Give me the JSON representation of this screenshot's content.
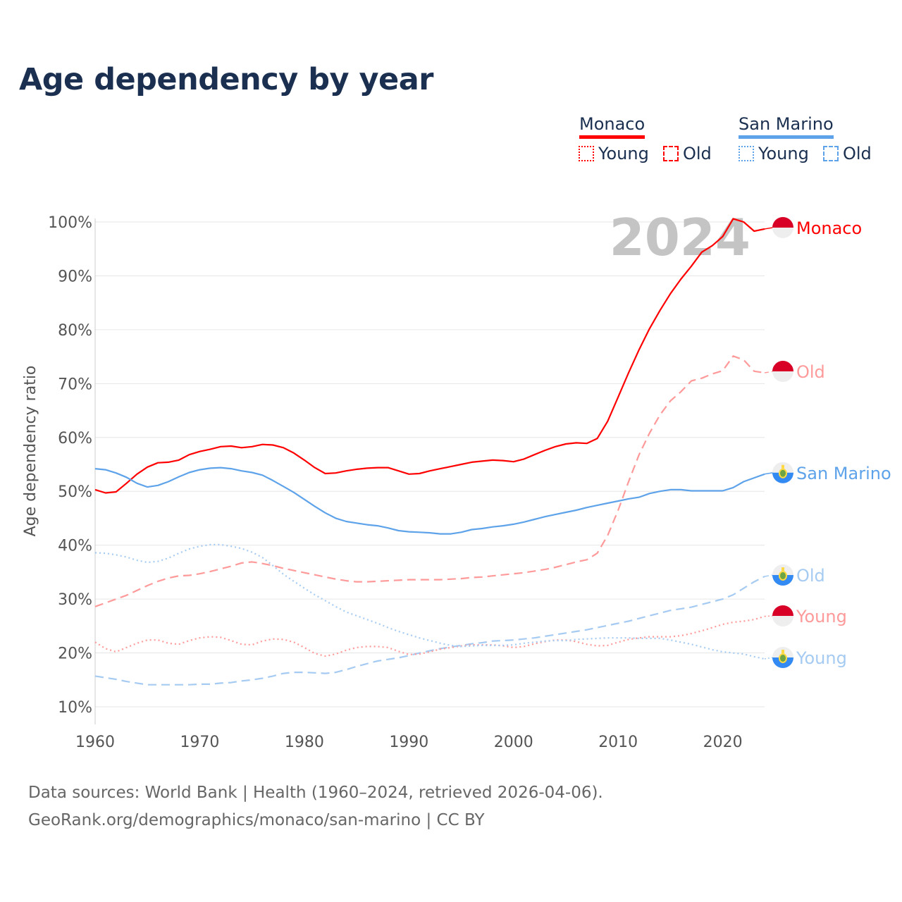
{
  "title": "Age dependency by year",
  "legend": {
    "countries": [
      {
        "name": "Monaco",
        "color": "#ff0000",
        "young_label": "Young",
        "old_label": "Old"
      },
      {
        "name": "San Marino",
        "color": "#5ea3ea",
        "young_label": "Young",
        "old_label": "Old"
      }
    ]
  },
  "year_watermark": "2024",
  "footer": {
    "line1": "Data sources: World Bank | Health (1960–2024, retrieved 2026-04-06).",
    "line2": "GeoRank.org/demographics/monaco/san-marino | CC BY"
  },
  "chart_data": {
    "type": "line",
    "title": "Age dependency by year",
    "xlabel": "",
    "ylabel": "Age dependency ratio",
    "xlim": [
      1960,
      2024
    ],
    "ylim": [
      10,
      100
    ],
    "x_ticks": [
      1960,
      1970,
      1980,
      1990,
      2000,
      2010,
      2020
    ],
    "y_ticks": [
      "10%",
      "20%",
      "30%",
      "40%",
      "50%",
      "60%",
      "70%",
      "80%",
      "90%",
      "100%"
    ],
    "y_tick_values": [
      10,
      20,
      30,
      40,
      50,
      60,
      70,
      80,
      90,
      100
    ],
    "grid": true,
    "x_start": 1960,
    "series": [
      {
        "name": "Monaco",
        "label": "Monaco",
        "country": "Monaco",
        "style": "solid",
        "color": "#ff0000",
        "values": [
          50.3,
          49.7,
          49.9,
          51.5,
          53.2,
          54.5,
          55.3,
          55.4,
          55.8,
          56.8,
          57.4,
          57.8,
          58.3,
          58.4,
          58.1,
          58.3,
          58.7,
          58.6,
          58.1,
          57.1,
          55.8,
          54.4,
          53.3,
          53.4,
          53.8,
          54.1,
          54.3,
          54.4,
          54.4,
          53.8,
          53.2,
          53.3,
          53.8,
          54.2,
          54.6,
          55.0,
          55.4,
          55.6,
          55.8,
          55.7,
          55.5,
          56.0,
          56.8,
          57.6,
          58.3,
          58.8,
          59.0,
          58.9,
          59.8,
          63.0,
          67.5,
          72.0,
          76.3,
          80.2,
          83.6,
          86.7,
          89.4,
          91.8,
          94.4,
          95.6,
          97.3,
          100.6,
          100.0,
          98.3,
          98.7
        ]
      },
      {
        "name": "Monaco Old",
        "label": "Old",
        "country": "Monaco",
        "style": "dashed",
        "color": "#ff9a9a",
        "values": [
          28.6,
          29.3,
          30.0,
          30.7,
          31.6,
          32.5,
          33.3,
          33.9,
          34.3,
          34.4,
          34.7,
          35.1,
          35.6,
          36.1,
          36.7,
          36.9,
          36.6,
          36.2,
          35.7,
          35.3,
          34.9,
          34.5,
          34.1,
          33.7,
          33.4,
          33.2,
          33.2,
          33.3,
          33.4,
          33.5,
          33.6,
          33.6,
          33.6,
          33.6,
          33.7,
          33.8,
          34.0,
          34.1,
          34.3,
          34.5,
          34.7,
          34.9,
          35.2,
          35.5,
          35.9,
          36.4,
          36.9,
          37.3,
          38.5,
          41.8,
          46.5,
          51.8,
          56.8,
          60.8,
          64.2,
          66.8,
          68.5,
          70.5,
          71.0,
          71.8,
          72.4,
          75.1,
          74.4,
          72.3,
          72.0
        ]
      },
      {
        "name": "San Marino",
        "label": "San Marino",
        "country": "San Marino",
        "style": "solid",
        "color": "#5ea3ea",
        "values": [
          54.2,
          54.0,
          53.4,
          52.6,
          51.5,
          50.8,
          51.1,
          51.8,
          52.7,
          53.5,
          54.0,
          54.3,
          54.4,
          54.2,
          53.8,
          53.5,
          53.0,
          52.0,
          50.9,
          49.8,
          48.5,
          47.2,
          46.0,
          45.0,
          44.4,
          44.1,
          43.8,
          43.6,
          43.2,
          42.7,
          42.5,
          42.4,
          42.3,
          42.1,
          42.1,
          42.4,
          42.9,
          43.1,
          43.4,
          43.6,
          43.9,
          44.3,
          44.8,
          45.3,
          45.7,
          46.1,
          46.5,
          47.0,
          47.4,
          47.8,
          48.2,
          48.6,
          48.9,
          49.6,
          50.0,
          50.3,
          50.3,
          50.1,
          50.1,
          50.1,
          50.1,
          50.7,
          51.8,
          52.5,
          53.2
        ]
      },
      {
        "name": "San Marino Old",
        "label": "Old",
        "country": "San Marino",
        "style": "dashed",
        "color": "#a6cbf2",
        "values": [
          15.7,
          15.4,
          15.1,
          14.7,
          14.4,
          14.1,
          14.1,
          14.1,
          14.1,
          14.1,
          14.2,
          14.2,
          14.4,
          14.5,
          14.8,
          15.0,
          15.3,
          15.7,
          16.2,
          16.4,
          16.4,
          16.3,
          16.2,
          16.4,
          16.9,
          17.5,
          18.0,
          18.5,
          18.8,
          19.1,
          19.5,
          20.0,
          20.4,
          20.8,
          21.1,
          21.4,
          21.7,
          21.9,
          22.2,
          22.3,
          22.4,
          22.6,
          22.8,
          23.1,
          23.4,
          23.7,
          24.0,
          24.3,
          24.7,
          25.1,
          25.5,
          25.9,
          26.4,
          26.9,
          27.4,
          27.9,
          28.2,
          28.5,
          29.0,
          29.5,
          30.0,
          30.8,
          32.0,
          33.2,
          34.2
        ]
      },
      {
        "name": "Monaco Young",
        "label": "Young",
        "country": "Monaco",
        "style": "dotted",
        "color": "#ff9a9a",
        "values": [
          22.0,
          20.8,
          20.2,
          21.0,
          21.8,
          22.4,
          22.4,
          21.8,
          21.6,
          22.3,
          22.8,
          23.0,
          22.9,
          22.3,
          21.6,
          21.5,
          22.2,
          22.6,
          22.5,
          22.0,
          21.0,
          19.9,
          19.4,
          19.8,
          20.5,
          21.0,
          21.2,
          21.2,
          21.0,
          20.3,
          19.7,
          19.8,
          20.2,
          20.7,
          21.0,
          21.3,
          21.5,
          21.5,
          21.5,
          21.3,
          21.0,
          21.2,
          21.7,
          22.1,
          22.4,
          22.4,
          22.1,
          21.6,
          21.3,
          21.4,
          22.0,
          22.5,
          22.8,
          23.0,
          23.0,
          23.0,
          23.2,
          23.6,
          24.1,
          24.7,
          25.3,
          25.7,
          25.9,
          26.2,
          26.8
        ]
      },
      {
        "name": "San Marino Young",
        "label": "Young",
        "country": "San Marino",
        "style": "dotted",
        "color": "#a6cbf2",
        "values": [
          38.6,
          38.5,
          38.2,
          37.8,
          37.2,
          36.8,
          37.0,
          37.6,
          38.5,
          39.3,
          39.8,
          40.1,
          40.1,
          39.8,
          39.4,
          38.7,
          37.7,
          36.2,
          34.6,
          33.3,
          32.0,
          30.8,
          29.7,
          28.6,
          27.6,
          26.9,
          26.2,
          25.5,
          24.7,
          24.0,
          23.4,
          22.8,
          22.3,
          21.8,
          21.4,
          21.2,
          21.3,
          21.4,
          21.4,
          21.4,
          21.5,
          21.8,
          22.0,
          22.2,
          22.3,
          22.3,
          22.5,
          22.6,
          22.7,
          22.8,
          22.8,
          22.8,
          22.7,
          22.7,
          22.7,
          22.4,
          22.0,
          21.6,
          21.1,
          20.6,
          20.2,
          20.0,
          19.8,
          19.3,
          18.9
        ]
      }
    ]
  }
}
